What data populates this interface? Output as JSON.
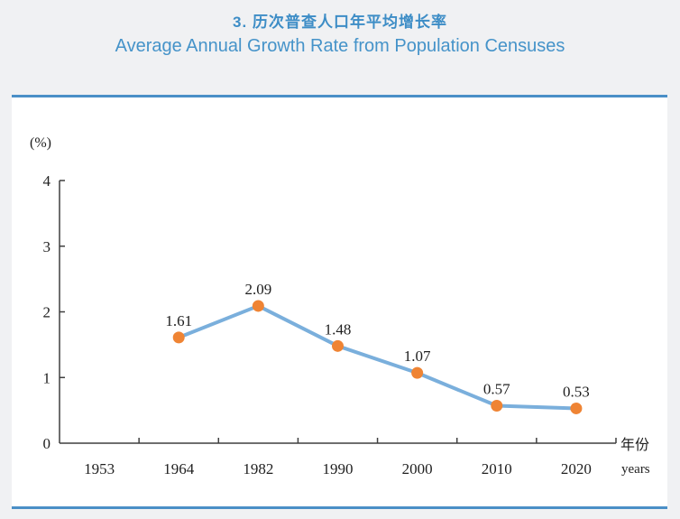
{
  "page": {
    "title_zh": "3. 历次普查人口年平均增长率",
    "title_en": "Average Annual Growth Rate from Population Censuses",
    "accent_color": "#3d8dc6",
    "rule_color": "#4a8fc7"
  },
  "chart_data": {
    "type": "line",
    "title_zh": "3. 历次普查人口年平均增长率",
    "title_en": "Average Annual Growth Rate from Population Censuses",
    "categories": [
      "1953",
      "1964",
      "1982",
      "1990",
      "2000",
      "2010",
      "2020"
    ],
    "series": [
      {
        "name": "average-annual-growth-rate",
        "values": [
          null,
          1.61,
          2.09,
          1.48,
          1.07,
          0.57,
          0.53
        ]
      }
    ],
    "point_labels": [
      "",
      "1.61",
      "2.09",
      "1.48",
      "1.07",
      "0.57",
      "0.53"
    ],
    "unit_label": "(%)",
    "xlabel_zh": "年份",
    "xlabel_en": "years",
    "ylabel": "",
    "ylim": [
      0,
      4
    ],
    "yticks": [
      0,
      1,
      2,
      3,
      4
    ],
    "grid": "off",
    "legend": "none",
    "line_color": "#7aafdc",
    "marker_color": "#ef8434",
    "axis_color": "#3f3f3f"
  }
}
